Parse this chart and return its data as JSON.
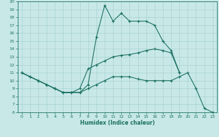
{
  "xlabel": "Humidex (Indice chaleur)",
  "bg_color": "#c8e8e8",
  "line_color": "#1a7060",
  "grid_color": "#a8d0d0",
  "xlim": [
    -0.5,
    23.5
  ],
  "ylim": [
    6,
    20
  ],
  "xticks": [
    0,
    1,
    2,
    3,
    4,
    5,
    6,
    7,
    8,
    9,
    10,
    11,
    12,
    13,
    14,
    15,
    16,
    17,
    18,
    19,
    20,
    21,
    22,
    23
  ],
  "yticks": [
    6,
    7,
    8,
    9,
    10,
    11,
    12,
    13,
    14,
    15,
    16,
    17,
    18,
    19,
    20
  ],
  "curve_top_x": [
    0,
    1,
    2,
    3,
    4,
    5,
    6,
    7,
    8,
    9,
    10,
    11,
    12,
    13,
    14,
    15,
    16,
    17,
    18,
    19
  ],
  "curve_top_y": [
    11,
    10.5,
    10,
    9.5,
    9,
    8.5,
    8.5,
    8.5,
    9.5,
    15.5,
    19.5,
    17.5,
    18.5,
    17.5,
    17.5,
    17.5,
    17.0,
    15.0,
    13.8,
    11.0
  ],
  "curve_mid_x": [
    0,
    1,
    2,
    3,
    4,
    5,
    6,
    7,
    8,
    9,
    10,
    11,
    12,
    13,
    14,
    15,
    16,
    17,
    18,
    19
  ],
  "curve_mid_y": [
    11,
    10.5,
    10,
    9.5,
    9,
    8.5,
    8.5,
    9.0,
    11.5,
    12.0,
    12.5,
    13.0,
    13.2,
    13.3,
    13.5,
    13.8,
    14.0,
    13.8,
    13.5,
    11.0
  ],
  "curve_bot_x": [
    0,
    1,
    2,
    3,
    4,
    5,
    6,
    7,
    8,
    9,
    10,
    11,
    12,
    13,
    14,
    15,
    16,
    17,
    18,
    19,
    20,
    21,
    22,
    23
  ],
  "curve_bot_y": [
    11,
    10.5,
    10,
    9.5,
    9,
    8.5,
    8.5,
    8.5,
    9.0,
    9.5,
    10.0,
    10.5,
    10.5,
    10.5,
    10.2,
    10.0,
    10.0,
    10.0,
    10.0,
    10.5,
    11.0,
    9.0,
    6.5,
    6.0
  ]
}
